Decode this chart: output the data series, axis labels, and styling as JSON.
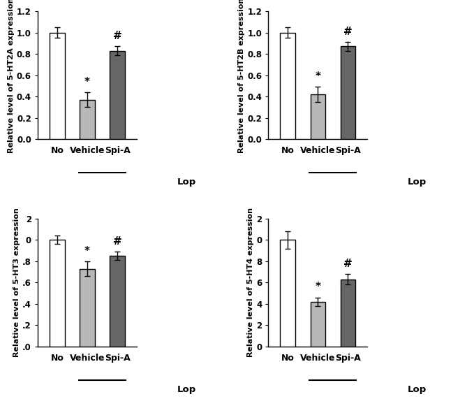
{
  "panels": [
    {
      "ylabel": "Relative level of 5-HT2A expression",
      "values": [
        1.0,
        0.37,
        0.83
      ],
      "errors": [
        0.05,
        0.07,
        0.04
      ],
      "ylim": [
        0,
        1.2
      ],
      "yticks": [
        0.0,
        0.2,
        0.4,
        0.6,
        0.8,
        1.0,
        1.2
      ],
      "yticklabels": [
        "0.0",
        "0.2",
        "0.4",
        "0.6",
        "0.8",
        "1.0",
        "1.2"
      ]
    },
    {
      "ylabel": "Relative level of 5-HT2B expression",
      "values": [
        1.0,
        0.42,
        0.87
      ],
      "errors": [
        0.05,
        0.07,
        0.04
      ],
      "ylim": [
        0,
        1.2
      ],
      "yticks": [
        0.0,
        0.2,
        0.4,
        0.6,
        0.8,
        1.0,
        1.2
      ],
      "yticklabels": [
        "0.0",
        "0.2",
        "0.4",
        "0.6",
        "0.8",
        "1.0",
        "1.2"
      ]
    },
    {
      "ylabel": "Relative level of 5-HT3 expression",
      "values": [
        1.0,
        0.73,
        0.85
      ],
      "errors": [
        0.04,
        0.07,
        0.04
      ],
      "ylim": [
        0,
        1.2
      ],
      "yticks": [
        0.0,
        0.2,
        0.4,
        0.6,
        0.8,
        1.0,
        1.2
      ],
      "yticklabels": [
        ".0",
        ".2",
        ".4",
        ".6",
        ".8",
        "0",
        "2"
      ]
    },
    {
      "ylabel": "Relative level of 5-HT4 expression",
      "values": [
        1.0,
        0.42,
        0.63
      ],
      "errors": [
        0.08,
        0.04,
        0.05
      ],
      "ylim": [
        0,
        1.2
      ],
      "yticks": [
        0.0,
        0.2,
        0.4,
        0.6,
        0.8,
        1.0,
        1.2
      ],
      "yticklabels": [
        "0",
        "2",
        "4",
        "6",
        "8",
        "0",
        "2"
      ]
    }
  ],
  "categories": [
    "No",
    "Vehicle",
    "Spi-A"
  ],
  "bar_colors": [
    "#ffffff",
    "#b8b8b8",
    "#666666"
  ],
  "bar_edgecolor": "#000000",
  "lop_label": "Lop",
  "significance_vehicle": "*",
  "significance_spia": "#",
  "bar_width": 0.5,
  "capsize": 3,
  "elinewidth": 1.0,
  "ecapthick": 1.0
}
